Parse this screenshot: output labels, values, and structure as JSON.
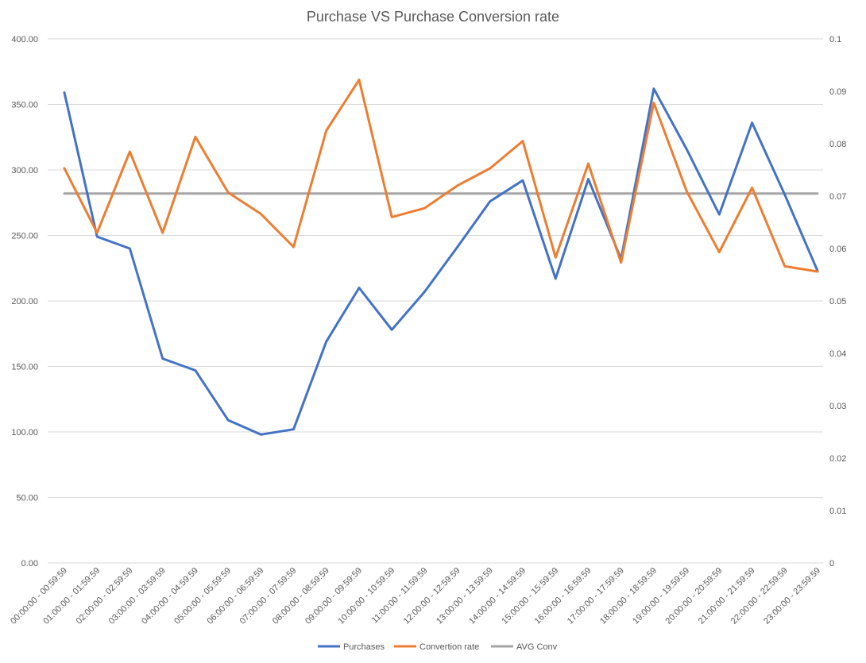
{
  "chart_data": {
    "type": "line",
    "title": "Purchase VS Purchase Conversion rate",
    "categories": [
      "00:00:00 - 00:59:59",
      "01:00:00 - 01:59:59",
      "02:00:00 - 02:59:59",
      "03:00:00 - 03:59:59",
      "04:00:00 - 04:59:59",
      "05:00:00 - 05:59:59",
      "06:00:00 - 06:59:59",
      "07:00:00 - 07:59:59",
      "08:00:00 - 08:59:59",
      "09:00:00 - 09:59:59",
      "10:00:00 - 10:59:59",
      "11:00:00 - 11:59:59",
      "12:00:00 - 12:59:59",
      "13:00:00 - 13:59:59",
      "14:00:00 - 14:59:59",
      "15:00:00 - 15:59:59",
      "16:00:00 - 16:59:59",
      "17:00:00 - 17:59:59",
      "18:00:00 - 18:59:59",
      "19:00:00 - 19:59:59",
      "20:00:00 - 20:59:59",
      "21:00:00 - 21:59:59",
      "22:00:00 - 22:59:59",
      "23:00:00 - 23:59:59"
    ],
    "y_left": {
      "ylim": [
        0,
        400
      ],
      "ticks": [
        "0.00",
        "50.00",
        "100.00",
        "150.00",
        "200.00",
        "250.00",
        "300.00",
        "350.00",
        "400.00"
      ]
    },
    "y_right": {
      "ylim": [
        0,
        0.1
      ],
      "ticks": [
        "0",
        "0.01",
        "0.02",
        "0.03",
        "0.04",
        "0.05",
        "0.06",
        "0.07",
        "0.08",
        "0.09",
        "0.1"
      ]
    },
    "grid": true,
    "legend_position": "bottom",
    "series": [
      {
        "name": "Purchases",
        "axis": "left",
        "color": "#4472c4",
        "values": [
          359,
          249,
          240,
          156,
          147,
          109,
          98,
          102,
          169,
          210,
          178,
          207,
          241,
          276,
          292,
          217,
          293,
          232,
          362,
          316,
          266,
          336,
          281,
          223
        ]
      },
      {
        "name": "Convertion rate",
        "axis": "right",
        "color": "#ed7d31",
        "values": [
          0.0753,
          0.063,
          0.0785,
          0.063,
          0.0813,
          0.0707,
          0.0666,
          0.0603,
          0.0825,
          0.0922,
          0.066,
          0.0677,
          0.072,
          0.0753,
          0.0805,
          0.0583,
          0.0762,
          0.0573,
          0.0878,
          0.071,
          0.0593,
          0.0716,
          0.0566,
          0.0556
        ]
      },
      {
        "name": "AVG Conv",
        "axis": "right",
        "color": "#a5a5a5",
        "values": [
          0.0705,
          0.0705,
          0.0705,
          0.0705,
          0.0705,
          0.0705,
          0.0705,
          0.0705,
          0.0705,
          0.0705,
          0.0705,
          0.0705,
          0.0705,
          0.0705,
          0.0705,
          0.0705,
          0.0705,
          0.0705,
          0.0705,
          0.0705,
          0.0705,
          0.0705,
          0.0705,
          0.0705
        ]
      }
    ]
  }
}
